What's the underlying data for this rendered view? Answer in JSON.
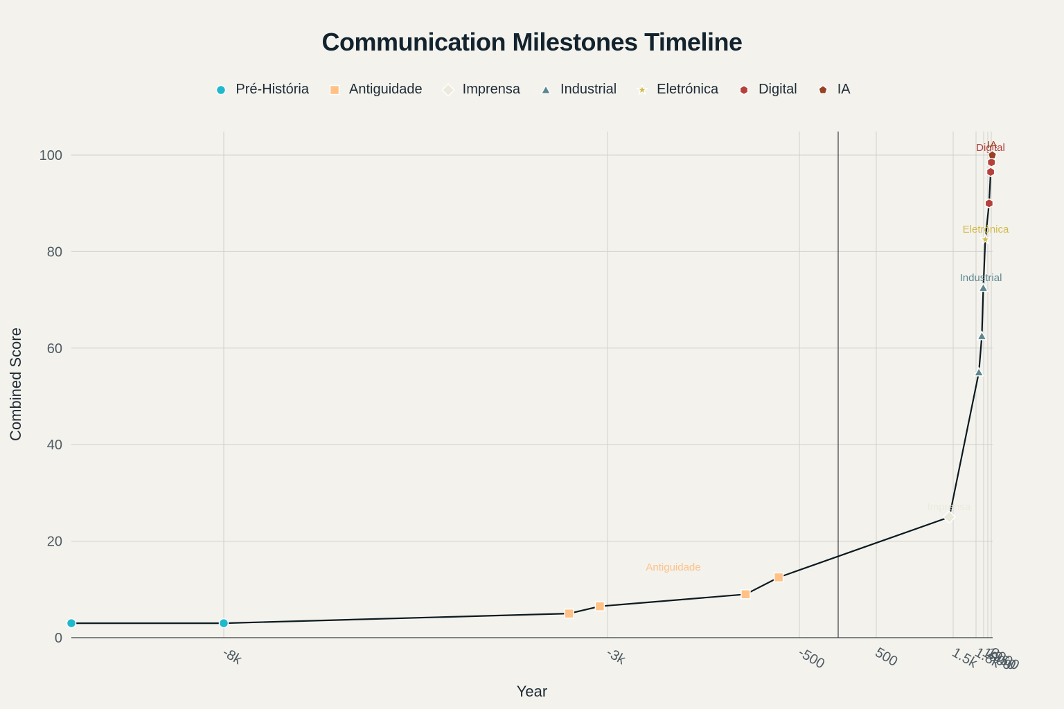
{
  "chart_data": {
    "type": "line",
    "title": "Communication Milestones Timeline",
    "xlabel": "Year",
    "ylabel": "Combined Score",
    "xlim": [
      -12000,
      2030
    ],
    "ylim": [
      0,
      105
    ],
    "y_ticks": [
      0,
      20,
      40,
      60,
      80,
      100
    ],
    "x_ticks": [
      {
        "value": -8000,
        "label": "-8k"
      },
      {
        "value": -3000,
        "label": "-3k"
      },
      {
        "value": -500,
        "label": "-500"
      },
      {
        "value": 500,
        "label": "500"
      },
      {
        "value": 1500,
        "label": "1.5k"
      },
      {
        "value": 1800,
        "label": "1.8k"
      },
      {
        "value": 1900,
        "label": "1900"
      },
      {
        "value": 1950,
        "label": "1950"
      },
      {
        "value": 2000,
        "label": "2000"
      }
    ],
    "grid": true,
    "legend_position": "top",
    "line_color": "#0b1a20",
    "series": [
      {
        "name": "Pré-História",
        "color": "#1fb8cd",
        "marker": "circle",
        "points": [
          [
            -12000,
            3
          ],
          [
            -8000,
            3
          ]
        ]
      },
      {
        "name": "Antiguidade",
        "color": "#ffc185",
        "marker": "square",
        "label": "Antiguidade",
        "points": [
          [
            -3500,
            5
          ],
          [
            -3100,
            6.5
          ],
          [
            -1200,
            9
          ],
          [
            -770,
            12.5
          ]
        ]
      },
      {
        "name": "Imprensa",
        "color": "#eceadc",
        "marker": "diamond",
        "label": "Imprensa",
        "points": [
          [
            1450,
            25
          ]
        ]
      },
      {
        "name": "Industrial",
        "color": "#5d878f",
        "marker": "triangle",
        "label": "Industrial",
        "points": [
          [
            1837,
            55
          ],
          [
            1876,
            62.5
          ],
          [
            1895,
            72.5
          ]
        ]
      },
      {
        "name": "Eletrónica",
        "color": "#d2ba4c",
        "marker": "star",
        "label": "Eletrónica",
        "points": [
          [
            1920,
            82.5
          ]
        ]
      },
      {
        "name": "Digital",
        "color": "#b4413c",
        "marker": "hexagon",
        "label": "Digital",
        "points": [
          [
            1969,
            90
          ],
          [
            1991,
            96.5
          ],
          [
            2004,
            98.5
          ]
        ]
      },
      {
        "name": "IA",
        "color": "#964325",
        "marker": "pentagon",
        "label": "IA",
        "points": [
          [
            2022,
            100
          ]
        ]
      }
    ]
  }
}
